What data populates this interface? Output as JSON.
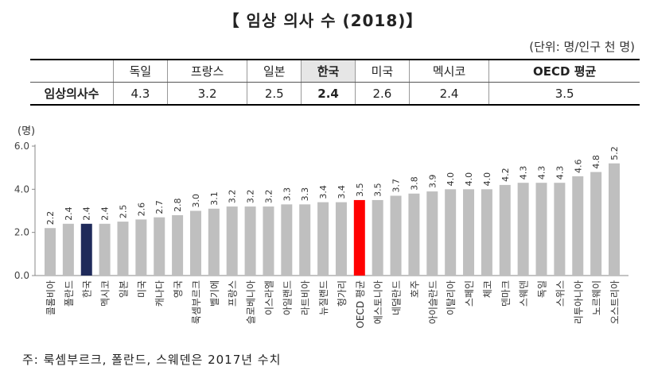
{
  "title": "【 임상 의사 수 (2018)】",
  "unit_note": "(단위: 명/인구 천 명)",
  "summary_table": {
    "row_label": "임상의사수",
    "columns": [
      {
        "country": "독일",
        "value": "4.3"
      },
      {
        "country": "프랑스",
        "value": "3.2"
      },
      {
        "country": "일본",
        "value": "2.5"
      },
      {
        "country": "한국",
        "value": "2.4"
      },
      {
        "country": "미국",
        "value": "2.6"
      },
      {
        "country": "멕시코",
        "value": "2.4"
      },
      {
        "country": "OECD 평균",
        "value": "3.5"
      }
    ]
  },
  "chart_data": {
    "type": "bar",
    "ylabel": "(명)",
    "ylim": [
      0,
      6
    ],
    "yticks": [
      "0.0",
      "2.0",
      "4.0",
      "6.0"
    ],
    "grid": false,
    "categories": [
      "콜롬비아",
      "폴란드",
      "한국",
      "멕시코",
      "일본",
      "미국",
      "캐나다",
      "영국",
      "룩셈부르크",
      "벨기에",
      "프랑스",
      "슬로베니아",
      "이스라엘",
      "아일랜드",
      "라트비아",
      "뉴질랜드",
      "헝가리",
      "OECD 평균",
      "에스토니아",
      "네덜란드",
      "호주",
      "아이슬란드",
      "이탈리아",
      "스페인",
      "체코",
      "덴마크",
      "스웨덴",
      "독일",
      "스위스",
      "리투아니아",
      "노르웨이",
      "오스트리아"
    ],
    "values": [
      2.2,
      2.4,
      2.4,
      2.4,
      2.5,
      2.6,
      2.7,
      2.8,
      3.0,
      3.1,
      3.2,
      3.2,
      3.2,
      3.3,
      3.3,
      3.4,
      3.4,
      3.5,
      3.5,
      3.7,
      3.8,
      3.9,
      4.0,
      4.0,
      4.0,
      4.2,
      4.3,
      4.3,
      4.3,
      4.6,
      4.8,
      5.2
    ],
    "value_labels": [
      "2.2",
      "2.4",
      "2.4",
      "2.4",
      "2.5",
      "2.6",
      "2.7",
      "2.8",
      "3.0",
      "3.1",
      "3.2",
      "3.2",
      "3.2",
      "3.3",
      "3.3",
      "3.4",
      "3.4",
      "3.5",
      "3.5",
      "3.7",
      "3.8",
      "3.9",
      "4.0",
      "4.0",
      "4.0",
      "4.2",
      "4.3",
      "4.3",
      "4.3",
      "4.6",
      "4.8",
      "5.2"
    ],
    "colors": {
      "default": "#bfbfbf",
      "korea": "#1f2a5a",
      "oecd": "#ff0000"
    },
    "highlight": {
      "한국": "korea",
      "OECD 평균": "oecd"
    }
  },
  "footnote": "주: 룩셈부르크, 폴란드, 스웨덴은 2017년 수치"
}
